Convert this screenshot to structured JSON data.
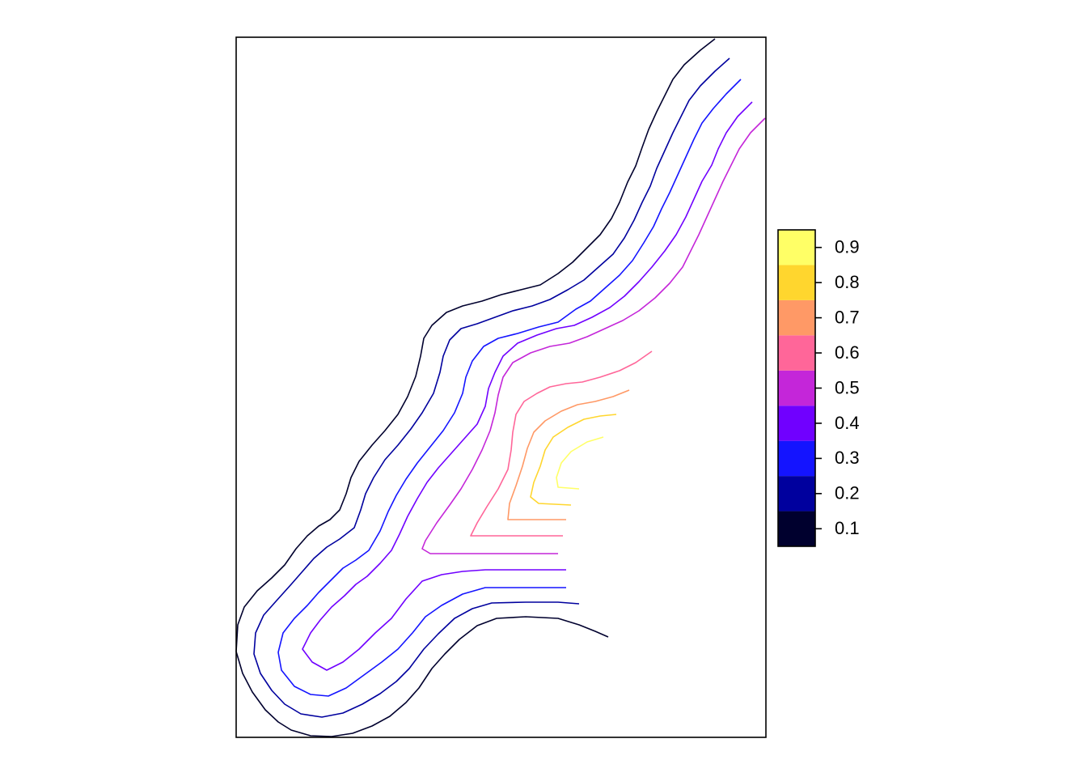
{
  "chart_data": {
    "type": "contour",
    "title": "",
    "xlabel": "",
    "ylabel": "",
    "axes_shown": false,
    "box": true,
    "legend": {
      "position": "right",
      "type": "colorkey",
      "breaks": [
        0.05,
        0.15,
        0.25,
        0.35,
        0.45,
        0.55,
        0.65,
        0.75,
        0.85,
        0.95
      ],
      "colors": [
        "#00002E",
        "#00009E",
        "#1414FF",
        "#7000FF",
        "#C426D9",
        "#FF6699",
        "#FF9966",
        "#FFD62E",
        "#FFFF66"
      ],
      "tick_labels": [
        "0.1",
        "0.2",
        "0.3",
        "0.4",
        "0.5",
        "0.6",
        "0.7",
        "0.8",
        "0.9"
      ]
    },
    "levels": [
      {
        "level": 0.1,
        "color": "#00002E"
      },
      {
        "level": 0.2,
        "color": "#00009E"
      },
      {
        "level": 0.3,
        "color": "#1414FF"
      },
      {
        "level": 0.4,
        "color": "#7000FF"
      },
      {
        "level": 0.5,
        "color": "#C426D9"
      },
      {
        "level": 0.6,
        "color": "#FF6699"
      },
      {
        "level": 0.7,
        "color": "#FF9966"
      },
      {
        "level": 0.8,
        "color": "#FFD62E"
      },
      {
        "level": 0.9,
        "color": "#FFFF66"
      }
    ]
  }
}
